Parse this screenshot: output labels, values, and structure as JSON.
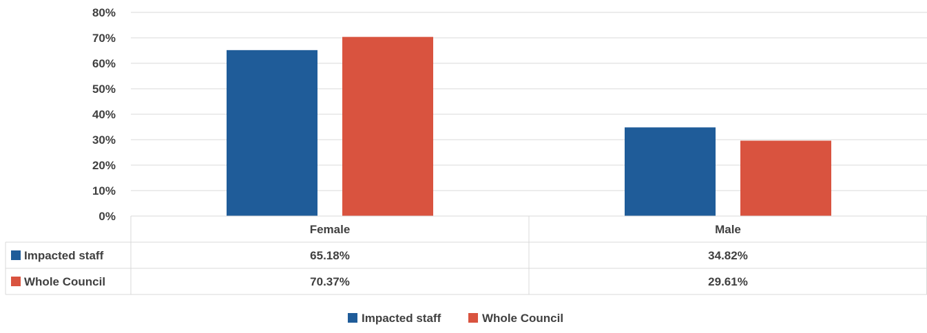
{
  "chart_data": {
    "type": "bar",
    "categories": [
      "Female",
      "Male"
    ],
    "series": [
      {
        "name": "Impacted staff",
        "values": [
          65.18,
          34.82
        ],
        "labels": [
          "65.18%",
          "34.82%"
        ],
        "color": "#1F5C99"
      },
      {
        "name": "Whole Council",
        "values": [
          70.37,
          29.61
        ],
        "labels": [
          "70.37%",
          "29.61%"
        ],
        "color": "#D9533F"
      }
    ],
    "ylim": [
      0,
      80
    ],
    "yticks": [
      0,
      10,
      20,
      30,
      40,
      50,
      60,
      70,
      80
    ],
    "ytick_labels": [
      "0%",
      "10%",
      "20%",
      "30%",
      "40%",
      "50%",
      "60%",
      "70%",
      "80%"
    ],
    "title": "",
    "xlabel": "",
    "ylabel": "",
    "grid": true,
    "legend_position": "bottom",
    "data_table": true
  }
}
